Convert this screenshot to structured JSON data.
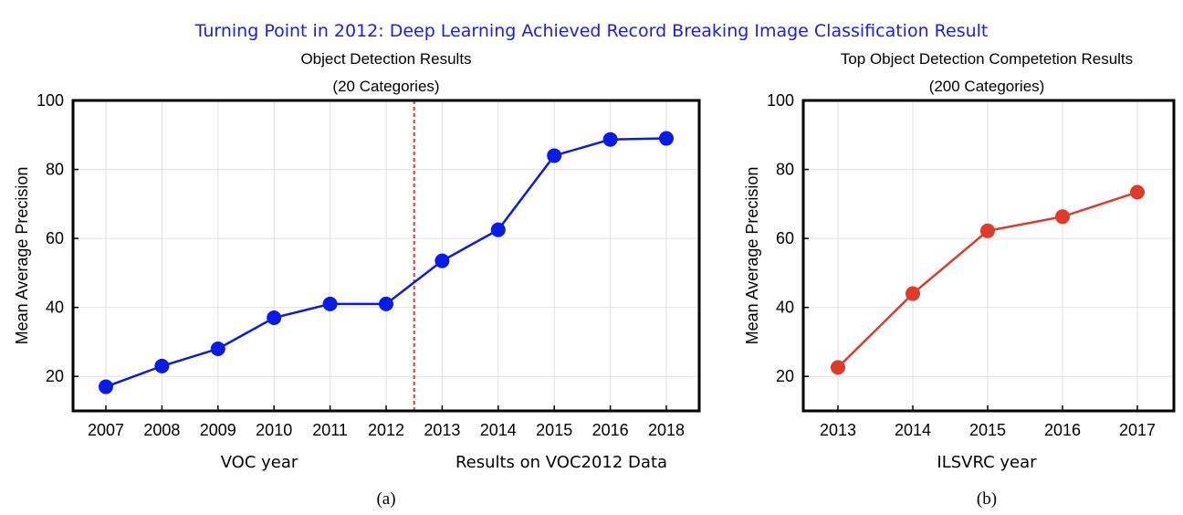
{
  "figure_title": "Turning Point in 2012: Deep Learning Achieved Record Breaking Image Classification Result",
  "colors": {
    "title": "#1a1aff",
    "series_a": "#0a1be6",
    "series_b": "#e03a2a",
    "divider": "#e03a2a",
    "grid": "#e2e2e2",
    "frame": "#000000"
  },
  "chart_data": [
    {
      "type": "line",
      "title": "Object Detection Results",
      "subtitle": "(20 Categories)",
      "xlabel": "VOC year",
      "xlabel_right": "Results on VOC2012 Data",
      "ylabel": "Mean Average Precision",
      "panel_label": "(a)",
      "categories": [
        "2007",
        "2008",
        "2009",
        "2010",
        "2011",
        "2012",
        "2013",
        "2014",
        "2015",
        "2016",
        "2018"
      ],
      "values": [
        17,
        23,
        28,
        37,
        41,
        41,
        53.5,
        62.5,
        84,
        88.7,
        89
      ],
      "ylim": [
        10,
        100
      ],
      "yticks": [
        20,
        40,
        60,
        80,
        100
      ],
      "divider_after": "2012",
      "grid": true
    },
    {
      "type": "line",
      "title": "Top Object Detection Competetion Results",
      "subtitle": "(200 Categories)",
      "xlabel": "ILSVRC year",
      "ylabel": "Mean Average Precision",
      "panel_label": "(b)",
      "categories": [
        "2013",
        "2014",
        "2015",
        "2016",
        "2017"
      ],
      "values": [
        22.6,
        44,
        62.2,
        66.3,
        73.4
      ],
      "ylim": [
        10,
        100
      ],
      "yticks": [
        20,
        40,
        60,
        80,
        100
      ],
      "grid": true
    }
  ]
}
